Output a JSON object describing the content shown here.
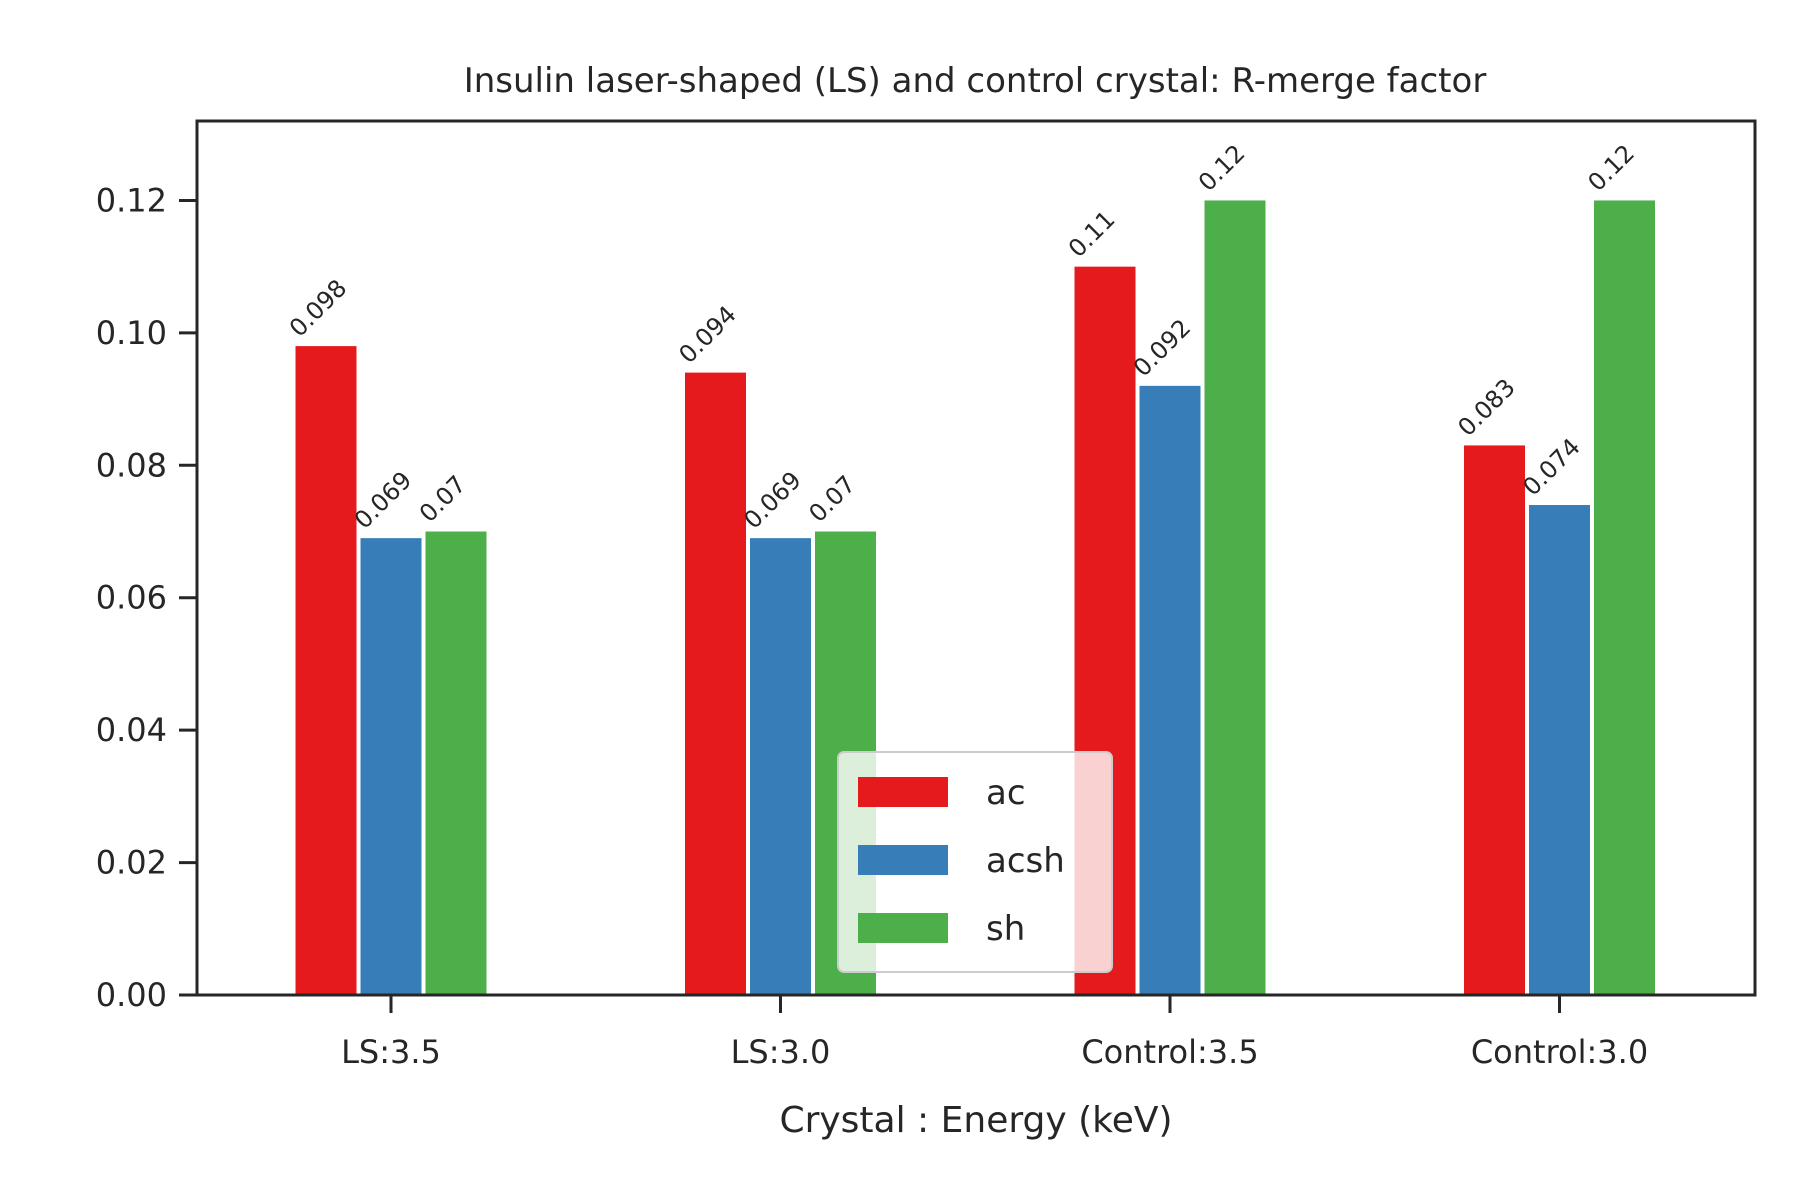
{
  "chart_data": {
    "type": "bar",
    "title": "Insulin laser-shaped (LS) and control crystal: R-merge factor",
    "xlabel": "Crystal : Energy (keV)",
    "ylabel": "",
    "ylim": [
      0,
      0.132
    ],
    "yticks": [
      0.0,
      0.02,
      0.04,
      0.06,
      0.08,
      0.1,
      0.12
    ],
    "ytick_labels": [
      "0.00",
      "0.02",
      "0.04",
      "0.06",
      "0.08",
      "0.10",
      "0.12"
    ],
    "categories": [
      "LS:3.5",
      "LS:3.0",
      "Control:3.5",
      "Control:3.0"
    ],
    "series": [
      {
        "name": "ac",
        "color": "#e41a1c",
        "values": [
          0.098,
          0.094,
          0.11,
          0.083
        ],
        "labels": [
          "0.098",
          "0.094",
          "0.11",
          "0.083"
        ]
      },
      {
        "name": "acsh",
        "color": "#377eb8",
        "values": [
          0.069,
          0.069,
          0.092,
          0.074
        ],
        "labels": [
          "0.069",
          "0.069",
          "0.092",
          "0.074"
        ]
      },
      {
        "name": "sh",
        "color": "#4daf4a",
        "values": [
          0.07,
          0.07,
          0.12,
          0.12
        ],
        "labels": [
          "0.07",
          "0.07",
          "0.12",
          "0.12"
        ]
      }
    ],
    "legend_position": "lower center",
    "grid": false
  }
}
